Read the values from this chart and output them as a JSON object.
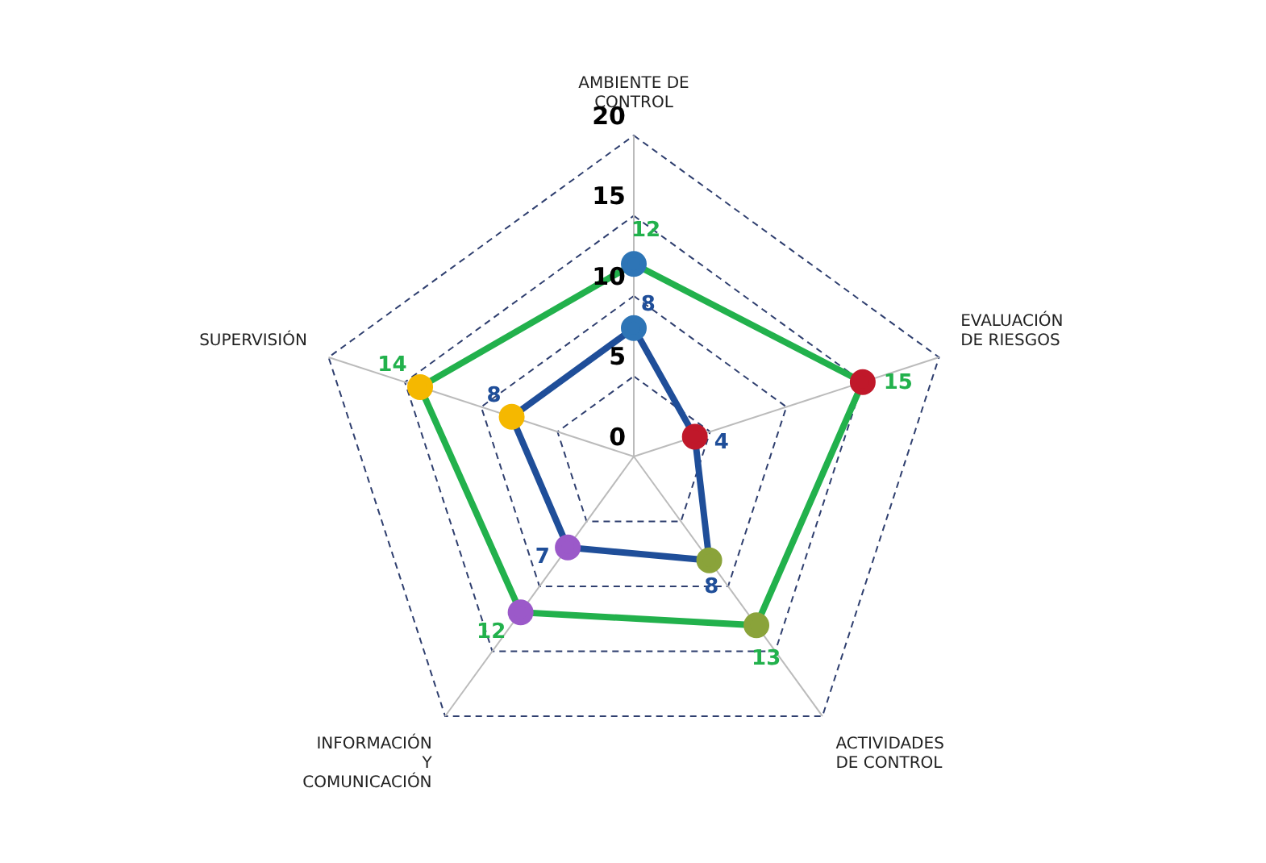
{
  "chart_data": {
    "type": "radar",
    "categories": [
      "AMBIENTE DE CONTROL",
      "EVALUACIÓN DE RIESGOS",
      "ACTIVIDADES DE CONTROL",
      "INFORMACIÓN Y COMUNICACIÓN",
      "SUPERVISIÓN"
    ],
    "series": [
      {
        "color": "#22b14c",
        "values": [
          12,
          15,
          13,
          12,
          14
        ],
        "colors": [
          "#2e75b6",
          "#c0182a",
          "#8aa33a",
          "#9b59c9",
          "#f5b800"
        ]
      },
      {
        "color": "#1f4e99",
        "values": [
          8,
          4,
          8,
          7,
          8
        ],
        "colors": [
          "#2e75b6",
          "#c0182a",
          "#8aa33a",
          "#9b59c9",
          "#f5b800"
        ]
      }
    ],
    "ylim": [
      0,
      20
    ],
    "yticks": [
      0,
      5,
      10,
      15,
      20
    ],
    "grid": true,
    "legend": false,
    "marker": "circle",
    "data_labels": true
  }
}
